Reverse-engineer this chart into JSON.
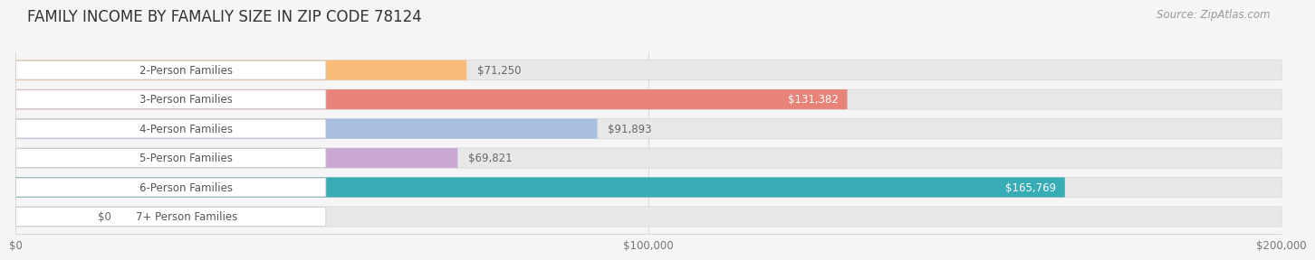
{
  "title": "FAMILY INCOME BY FAMALIY SIZE IN ZIP CODE 78124",
  "source": "Source: ZipAtlas.com",
  "categories": [
    "2-Person Families",
    "3-Person Families",
    "4-Person Families",
    "5-Person Families",
    "6-Person Families",
    "7+ Person Families"
  ],
  "values": [
    71250,
    131382,
    91893,
    69821,
    165769,
    0
  ],
  "bar_colors": [
    "#F9BC7A",
    "#E8837A",
    "#A8BFE0",
    "#C9A8D4",
    "#38ACB4",
    "#C8D0F0"
  ],
  "value_labels": [
    "$71,250",
    "$131,382",
    "$91,893",
    "$69,821",
    "$165,769",
    "$0"
  ],
  "xlim": [
    0,
    200000
  ],
  "xticks": [
    0,
    100000,
    200000
  ],
  "xtick_labels": [
    "$0",
    "$100,000",
    "$200,000"
  ],
  "background_color": "#f5f5f5",
  "bar_bg_color": "#e8e8e8",
  "title_fontsize": 12,
  "source_fontsize": 8.5,
  "label_fontsize": 8.5,
  "value_fontsize": 8.5,
  "tick_fontsize": 8.5
}
